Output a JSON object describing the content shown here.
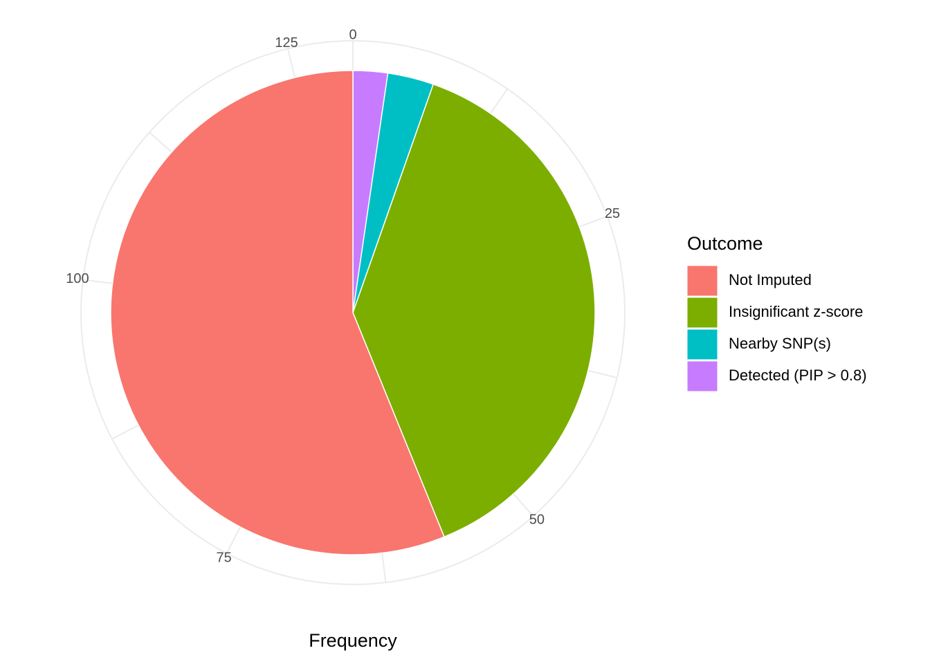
{
  "chart_data": {
    "type": "pie",
    "x_label": "Frequency",
    "legend_title": "Outcome",
    "categories": [
      "Not Imputed",
      "Insignificant z-score",
      "Nearby SNP(s)",
      "Detected (PIP > 0.8)"
    ],
    "values": [
      73,
      50,
      4,
      3
    ],
    "colors": [
      "#f8766d",
      "#7cae00",
      "#00bfc4",
      "#c77cff"
    ],
    "ylim": [
      0,
      130
    ],
    "yticks": [
      0,
      25,
      50,
      75,
      100,
      125
    ],
    "grid": true,
    "legend_position": "right"
  }
}
